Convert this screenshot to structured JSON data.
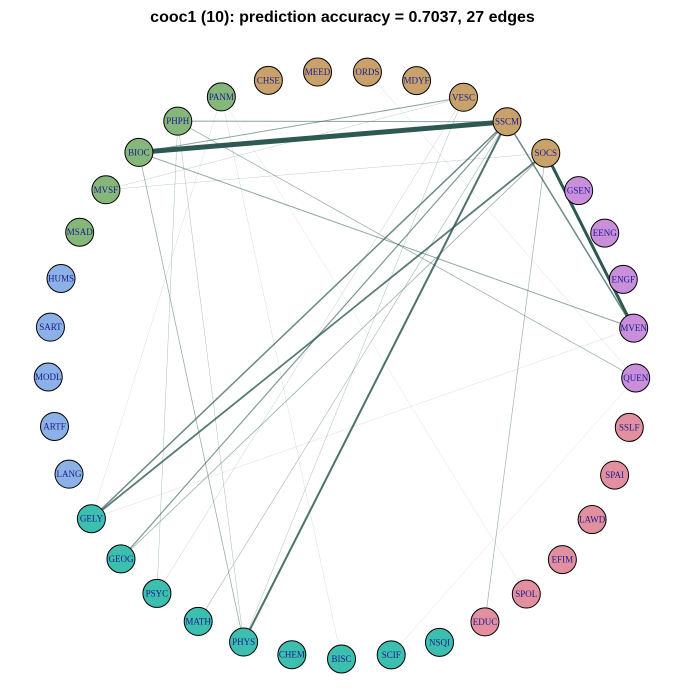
{
  "title": "cooc1 (10): prediction accuracy = 0.7037, 27 edges",
  "colors": {
    "brown": "#C8A26A",
    "green": "#86B77A",
    "blue": "#8CB1E6",
    "cyan": "#3DBFAF",
    "pink": "#E2909F",
    "purple": "#C98FDB",
    "edge": "#2E5953",
    "node_stroke": "#000000",
    "label": "#1A1A8C"
  },
  "nodes": [
    {
      "id": "CHSE",
      "group": "brown"
    },
    {
      "id": "MEED",
      "group": "brown"
    },
    {
      "id": "ORDS",
      "group": "brown"
    },
    {
      "id": "MDYF",
      "group": "brown"
    },
    {
      "id": "VESC",
      "group": "brown"
    },
    {
      "id": "SSCM",
      "group": "brown"
    },
    {
      "id": "SOCS",
      "group": "brown"
    },
    {
      "id": "GSEN",
      "group": "purple"
    },
    {
      "id": "EENG",
      "group": "purple"
    },
    {
      "id": "ENGF",
      "group": "purple"
    },
    {
      "id": "MVEN",
      "group": "purple"
    },
    {
      "id": "QUEN",
      "group": "purple"
    },
    {
      "id": "SSLF",
      "group": "pink"
    },
    {
      "id": "SPAI",
      "group": "pink"
    },
    {
      "id": "LAWD",
      "group": "pink"
    },
    {
      "id": "EFIM",
      "group": "pink"
    },
    {
      "id": "SPOL",
      "group": "pink"
    },
    {
      "id": "EDUC",
      "group": "pink"
    },
    {
      "id": "NSQI",
      "group": "cyan"
    },
    {
      "id": "SCIF",
      "group": "cyan"
    },
    {
      "id": "BISC",
      "group": "cyan"
    },
    {
      "id": "CHEM",
      "group": "cyan"
    },
    {
      "id": "PHYS",
      "group": "cyan"
    },
    {
      "id": "MATH",
      "group": "cyan"
    },
    {
      "id": "PSYC",
      "group": "cyan"
    },
    {
      "id": "GEOG",
      "group": "cyan"
    },
    {
      "id": "GELY",
      "group": "cyan"
    },
    {
      "id": "LANG",
      "group": "blue"
    },
    {
      "id": "ARTF",
      "group": "blue"
    },
    {
      "id": "MODL",
      "group": "blue"
    },
    {
      "id": "SART",
      "group": "blue"
    },
    {
      "id": "HUMS",
      "group": "blue"
    },
    {
      "id": "MSAD",
      "group": "green"
    },
    {
      "id": "MVSF",
      "group": "green"
    },
    {
      "id": "BIOC",
      "group": "green"
    },
    {
      "id": "PHPH",
      "group": "green"
    },
    {
      "id": "PANM",
      "group": "green"
    }
  ],
  "edges": [
    {
      "source": "BIOC",
      "target": "SSCM",
      "weight": 5
    },
    {
      "source": "SOCS",
      "target": "MVEN",
      "weight": 3
    },
    {
      "source": "SSCM",
      "target": "MVEN",
      "weight": 1.5
    },
    {
      "source": "BIOC",
      "target": "VESC",
      "weight": 1
    },
    {
      "source": "BIOC",
      "target": "MVEN",
      "weight": 1
    },
    {
      "source": "BIOC",
      "target": "PHYS",
      "weight": 0.8
    },
    {
      "source": "PHPH",
      "target": "SSCM",
      "weight": 1
    },
    {
      "source": "PHPH",
      "target": "QUEN",
      "weight": 0.8
    },
    {
      "source": "PHPH",
      "target": "PSYC",
      "weight": 0.5
    },
    {
      "source": "PHPH",
      "target": "PHYS",
      "weight": 0.5
    },
    {
      "source": "SSCM",
      "target": "GELY",
      "weight": 1.5
    },
    {
      "source": "SSCM",
      "target": "GEOG",
      "weight": 1.2
    },
    {
      "source": "SSCM",
      "target": "PHYS",
      "weight": 2
    },
    {
      "source": "SSCM",
      "target": "MATH",
      "weight": 0.6
    },
    {
      "source": "SOCS",
      "target": "GELY",
      "weight": 1.8
    },
    {
      "source": "SOCS",
      "target": "GEOG",
      "weight": 0.8
    },
    {
      "source": "SOCS",
      "target": "EDUC",
      "weight": 0.7
    },
    {
      "source": "SOCS",
      "target": "MVSF",
      "weight": 0.4
    },
    {
      "source": "VESC",
      "target": "PHYS",
      "weight": 0.5
    },
    {
      "source": "VESC",
      "target": "PSYC",
      "weight": 0.4
    },
    {
      "source": "VESC",
      "target": "MVSF",
      "weight": 0.4
    },
    {
      "source": "ORDS",
      "target": "QUEN",
      "weight": 0.3
    },
    {
      "source": "PANM",
      "target": "GELY",
      "weight": 0.3
    },
    {
      "source": "PANM",
      "target": "BISC",
      "weight": 0.3
    },
    {
      "source": "PANM",
      "target": "SPOL",
      "weight": 0.25
    },
    {
      "source": "GELY",
      "target": "MVEN",
      "weight": 0.3
    },
    {
      "source": "SCIF",
      "target": "QUEN",
      "weight": 0.25
    }
  ]
}
